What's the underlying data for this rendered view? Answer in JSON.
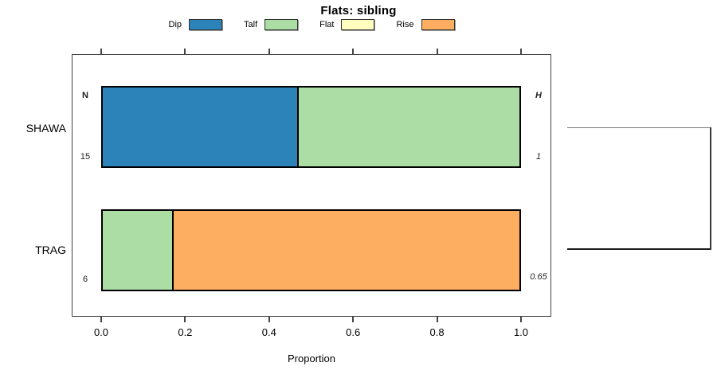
{
  "title": "Flats: sibling",
  "legend": {
    "items": [
      {
        "label": "Dip",
        "color": "#2B83BA"
      },
      {
        "label": "Talf",
        "color": "#ABDDA4"
      },
      {
        "label": "Flat",
        "color": "#FFFFBF"
      },
      {
        "label": "Rise",
        "color": "#FDAE61"
      }
    ]
  },
  "columns": {
    "n_header": "N",
    "h_header": "H"
  },
  "rows": [
    {
      "label": "SHAWA",
      "n": "15",
      "h": "1",
      "segments": [
        {
          "category": "Dip",
          "value": 0.467
        },
        {
          "category": "Talf",
          "value": 0.533
        }
      ]
    },
    {
      "label": "TRAG",
      "n": "6",
      "h": "0.65",
      "segments": [
        {
          "category": "Talf",
          "value": 0.167
        },
        {
          "category": "Rise",
          "value": 0.833
        }
      ]
    }
  ],
  "axis": {
    "xlabel": "Proportion",
    "ticks": [
      "0.0",
      "0.2",
      "0.4",
      "0.6",
      "0.8",
      "1.0"
    ]
  },
  "chart_data": {
    "type": "bar",
    "orientation": "horizontal",
    "stacked": true,
    "title": "Flats: sibling",
    "xlabel": "Proportion",
    "xlim": [
      0,
      1
    ],
    "xticks": [
      0.0,
      0.2,
      0.4,
      0.6,
      0.8,
      1.0
    ],
    "grid": false,
    "legend_position": "top",
    "categories": [
      "SHAWA",
      "TRAG"
    ],
    "series": [
      {
        "name": "Dip",
        "color": "#2B83BA",
        "values": [
          0.467,
          0
        ]
      },
      {
        "name": "Talf",
        "color": "#ABDDA4",
        "values": [
          0.533,
          0.167
        ]
      },
      {
        "name": "Flat",
        "color": "#FFFFBF",
        "values": [
          0,
          0
        ]
      },
      {
        "name": "Rise",
        "color": "#FDAE61",
        "values": [
          0,
          0.833
        ]
      }
    ],
    "annotations": {
      "N_column": {
        "header": "N",
        "values": [
          15,
          6
        ]
      },
      "H_column": {
        "header": "H",
        "values": [
          1,
          0.65
        ]
      }
    },
    "dendrogram": {
      "side": "right",
      "connects": [
        "SHAWA",
        "TRAG"
      ]
    }
  }
}
